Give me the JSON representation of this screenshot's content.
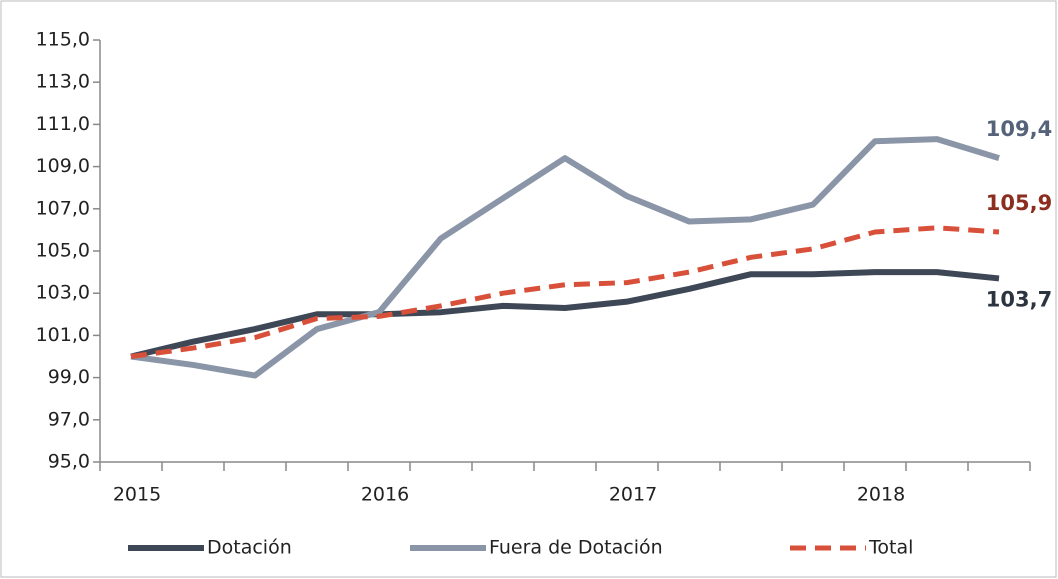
{
  "chart_data": {
    "type": "line",
    "categories": [
      "2015",
      null,
      null,
      null,
      "2016",
      null,
      null,
      null,
      "2017",
      null,
      null,
      null,
      "2018",
      null,
      null
    ],
    "series": [
      {
        "name": "Dotación",
        "color": "#3e4756",
        "label_color": "#2c3440",
        "dashed": false,
        "values": [
          100,
          100.7,
          101.3,
          102.0,
          102.0,
          102.1,
          102.4,
          102.3,
          102.6,
          103.2,
          103.9,
          103.9,
          104.0,
          104.0,
          103.7
        ],
        "value_labels": [
          null,
          null,
          null,
          null,
          null,
          null,
          null,
          null,
          null,
          null,
          null,
          null,
          null,
          null,
          "103,7"
        ]
      },
      {
        "name": "Fuera de Dotación",
        "color": "#8a96a7",
        "label_color": "#56627a",
        "dashed": false,
        "values": [
          100,
          99.6,
          99.1,
          101.3,
          102.1,
          105.6,
          107.5,
          109.4,
          107.6,
          106.4,
          106.5,
          107.2,
          110.2,
          110.3,
          109.4
        ],
        "value_labels": [
          null,
          null,
          null,
          null,
          null,
          null,
          null,
          null,
          null,
          null,
          null,
          null,
          null,
          null,
          "109,4"
        ]
      },
      {
        "name": "Total",
        "color": "#d8503a",
        "label_color": "#8b2e1f",
        "dashed": true,
        "values": [
          100,
          100.4,
          100.9,
          101.8,
          101.9,
          102.4,
          103.0,
          103.4,
          103.5,
          104.0,
          104.7,
          105.1,
          105.9,
          106.1,
          105.9
        ],
        "value_labels": [
          null,
          null,
          null,
          null,
          null,
          null,
          null,
          null,
          null,
          null,
          null,
          null,
          null,
          null,
          "105,9"
        ]
      }
    ],
    "ylim": [
      95,
      115
    ],
    "yticks": [
      {
        "value": 95,
        "label": "95,0"
      },
      {
        "value": 97,
        "label": "97,0"
      },
      {
        "value": 99,
        "label": "99,0"
      },
      {
        "value": 101,
        "label": "101,0"
      },
      {
        "value": 103,
        "label": "103,0"
      },
      {
        "value": 105,
        "label": "105,0"
      },
      {
        "value": 107,
        "label": "107,0"
      },
      {
        "value": 109,
        "label": "109,0"
      },
      {
        "value": 111,
        "label": "111,0"
      },
      {
        "value": 113,
        "label": "113,0"
      },
      {
        "value": 115,
        "label": "115,0"
      }
    ],
    "grid": false,
    "legend": "bottom"
  }
}
